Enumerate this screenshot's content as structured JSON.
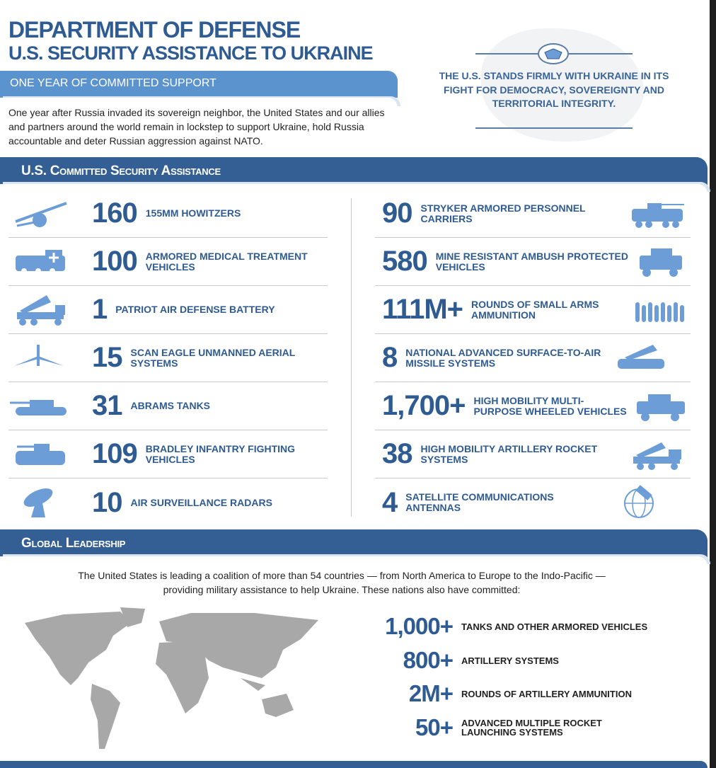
{
  "header": {
    "title_line1": "DEPARTMENT OF DEFENSE",
    "title_line2": "U.S. SECURITY ASSISTANCE TO UKRAINE",
    "subtitle": "ONE YEAR OF COMMITTED SUPPORT",
    "intro": "One year after Russia invaded its sovereign neighbor, the United States and our allies and partners around the world remain in lockstep to support Ukraine, hold Russia accountable and deter Russian aggression against NATO.",
    "slogan": "THE U.S. STANDS FIRMLY WITH UKRAINE IN ITS FIGHT FOR DEMOCRACY, SOVEREIGNTY AND TERRITORIAL INTEGRITY."
  },
  "colors": {
    "primary": "#2f5b93",
    "band": "#345f94",
    "light_band": "#5b93cf",
    "icon": "#6d9dd6"
  },
  "assistance": {
    "title": "U.S. Committed Security Assistance",
    "left": [
      {
        "value": "160",
        "label": "155MM Howitzers",
        "icon": "howitzer-icon"
      },
      {
        "value": "100",
        "label": "Armored Medical Treatment Vehicles",
        "icon": "medical-vehicle-icon"
      },
      {
        "value": "1",
        "label": "Patriot Air Defense Battery",
        "icon": "patriot-launcher-icon"
      },
      {
        "value": "15",
        "label": "Scan Eagle Unmanned Aerial Systems",
        "icon": "drone-icon"
      },
      {
        "value": "31",
        "label": "Abrams Tanks",
        "icon": "tank-icon"
      },
      {
        "value": "109",
        "label": "Bradley Infantry Fighting Vehicles",
        "icon": "bradley-icon"
      },
      {
        "value": "10",
        "label": "Air Surveillance Radars",
        "icon": "radar-icon"
      }
    ],
    "right": [
      {
        "value": "90",
        "label": "Stryker Armored Personnel Carriers",
        "icon": "stryker-icon"
      },
      {
        "value": "580",
        "label": "Mine Resistant Ambush Protected Vehicles",
        "icon": "mrap-icon"
      },
      {
        "value": "111M+",
        "label": "Rounds of Small Arms Ammunition",
        "icon": "ammunition-icon"
      },
      {
        "value": "8",
        "label": "National Advanced Surface-to-Air Missile Systems",
        "icon": "nasams-icon"
      },
      {
        "value": "1,700+",
        "label": "High Mobility Multi-Purpose Wheeled Vehicles",
        "icon": "humvee-icon"
      },
      {
        "value": "38",
        "label": "High Mobility Artillery Rocket Systems",
        "icon": "himars-icon"
      },
      {
        "value": "4",
        "label": "Satellite Communications Antennas",
        "icon": "satellite-globe-icon"
      }
    ]
  },
  "global": {
    "title": "Global Leadership",
    "text": "The United States is leading a coalition of more than 54 countries — from North America to Europe to the Indo-Pacific — providing military assistance to help Ukraine. These nations also have committed:",
    "stats": [
      {
        "value": "1,000+",
        "label": "TANKS AND OTHER ARMORED VEHICLES"
      },
      {
        "value": "800+",
        "label": "ARTILLERY SYSTEMS"
      },
      {
        "value": "2M+",
        "label": "ROUNDS OF ARTILLERY AMMUNITION"
      },
      {
        "value": "50+",
        "label": "ADVANCED MULTIPLE ROCKET LAUNCHING SYSTEMS"
      }
    ]
  }
}
